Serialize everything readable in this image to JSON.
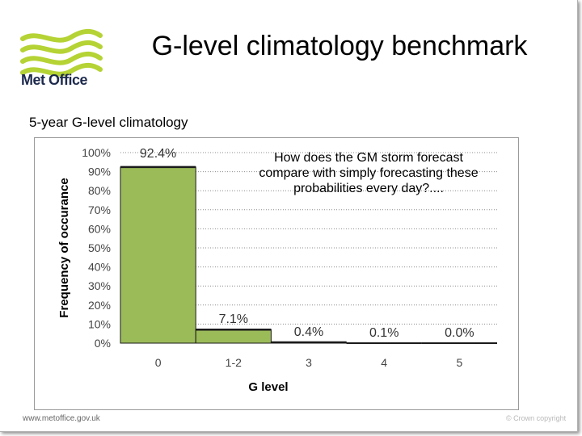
{
  "slide": {
    "title": "G-level climatology benchmark",
    "subtitle": "5-year G-level climatology",
    "annotation": "How does the GM storm forecast compare with simply forecasting these probabilities every day?....",
    "footer_url": "www.metoffice.gov.uk",
    "footer_copyright": "© Crown copyright",
    "logo_text": "Met Office",
    "colors": {
      "logo_green": "#b5d334",
      "logo_navy": "#1d2a4d",
      "bar_fill": "#9bbb59",
      "bar_edge": "#1a1a1a"
    }
  },
  "chart_data": {
    "type": "bar",
    "categories": [
      "0",
      "1-2",
      "3",
      "4",
      "5"
    ],
    "values": [
      92.4,
      7.1,
      0.4,
      0.1,
      0.0
    ],
    "data_labels": [
      "92.4%",
      "7.1%",
      "0.4%",
      "0.1%",
      "0.0%"
    ],
    "title": "",
    "xlabel": "G level",
    "ylabel": "Frequency of occurance",
    "ylim": [
      0,
      100
    ],
    "yticks": [
      "0%",
      "10%",
      "20%",
      "30%",
      "40%",
      "50%",
      "60%",
      "70%",
      "80%",
      "90%",
      "100%"
    ],
    "grid": true,
    "legend": "none"
  }
}
